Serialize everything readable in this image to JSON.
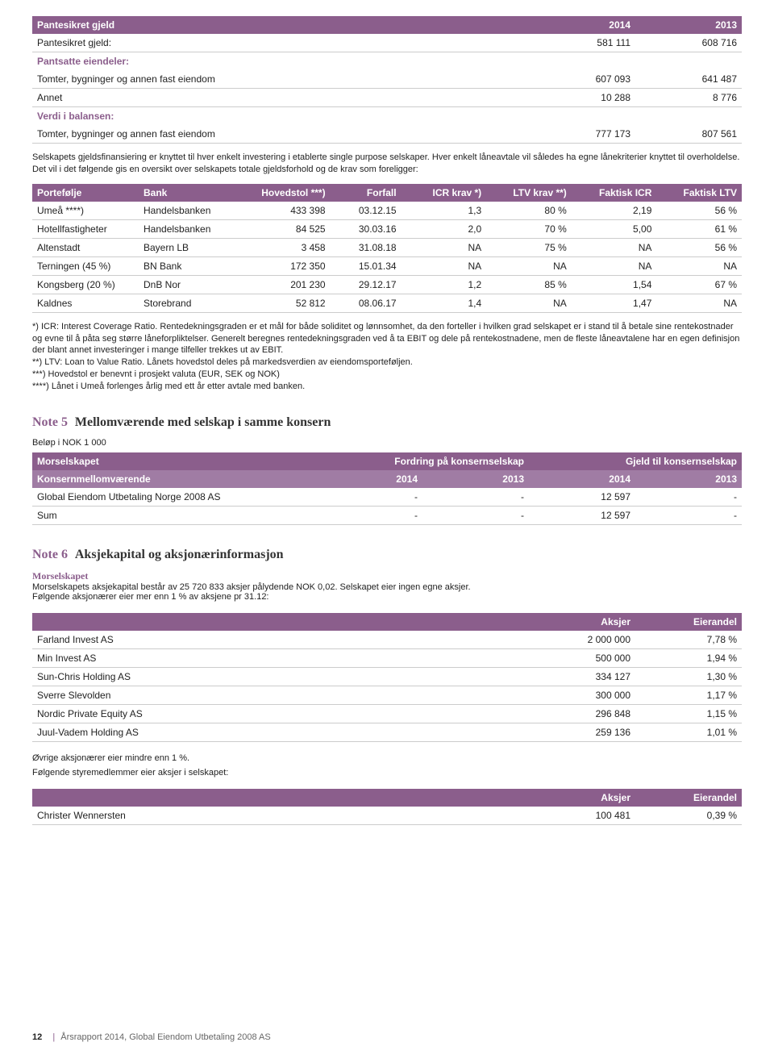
{
  "colors": {
    "header_bg": "#8b5e8c",
    "subhead_bg": "#a07ca4",
    "header_fg": "#ffffff",
    "row_border": "#cccccc",
    "accent_text": "#8b5e8c",
    "body_text": "#222222",
    "page_bg": "#ffffff"
  },
  "typography": {
    "base_pt": 12,
    "small_pt": 11,
    "heading_pt": 16,
    "heading_family": "Georgia, serif"
  },
  "table1": {
    "header": {
      "c0": "Pantesikret gjeld",
      "c1": "2014",
      "c2": "2013"
    },
    "rows": [
      {
        "label": "Pantesikret gjeld:",
        "v1": "581 111",
        "v2": "608 716",
        "cls": "data-row"
      },
      {
        "label": "Pantsatte eiendeler:",
        "v1": "",
        "v2": "",
        "cls": "sub-row bold-row"
      },
      {
        "label": "Tomter, bygninger og annen fast eiendom",
        "v1": "607 093",
        "v2": "641 487",
        "cls": "data-row"
      },
      {
        "label": "Annet",
        "v1": "10 288",
        "v2": "8 776",
        "cls": "data-row"
      },
      {
        "label": "Verdi i balansen:",
        "v1": "",
        "v2": "",
        "cls": "sub-row bold-row"
      },
      {
        "label": "Tomter, bygninger og annen fast eiendom",
        "v1": "777 173",
        "v2": "807 561",
        "cls": "data-row"
      }
    ],
    "col_widths": [
      "70%",
      "15%",
      "15%"
    ]
  },
  "para1": "Selskapets gjeldsfinansiering er knyttet til hver enkelt investering i etablerte single purpose selskaper. Hver enkelt låneavtale vil således ha egne lånekriterier knyttet til overholdelse. Det vil i det følgende gis en oversikt over selskapets totale gjeldsforhold og de krav som foreligger:",
  "table2": {
    "header": {
      "c0": "Portefølje",
      "c1": "Bank",
      "c2": "Hovedstol ***)",
      "c3": "Forfall",
      "c4": "ICR krav *)",
      "c5": "LTV krav **)",
      "c6": "Faktisk ICR",
      "c7": "Faktisk LTV"
    },
    "rows": [
      {
        "c0": "Umeå ****)",
        "c1": "Handelsbanken",
        "c2": "433 398",
        "c3": "03.12.15",
        "c4": "1,3",
        "c5": "80 %",
        "c6": "2,19",
        "c7": "56 %"
      },
      {
        "c0": "Hotellfastigheter",
        "c1": "Handelsbanken",
        "c2": "84 525",
        "c3": "30.03.16",
        "c4": "2,0",
        "c5": "70 %",
        "c6": "5,00",
        "c7": "61 %"
      },
      {
        "c0": "Altenstadt",
        "c1": "Bayern LB",
        "c2": "3 458",
        "c3": "31.08.18",
        "c4": "NA",
        "c5": "75 %",
        "c6": "NA",
        "c7": "56 %"
      },
      {
        "c0": "Terningen (45 %)",
        "c1": "BN Bank",
        "c2": "172 350",
        "c3": "15.01.34",
        "c4": "NA",
        "c5": "NA",
        "c6": "NA",
        "c7": "NA"
      },
      {
        "c0": "Kongsberg (20 %)",
        "c1": "DnB Nor",
        "c2": "201 230",
        "c3": "29.12.17",
        "c4": "1,2",
        "c5": "85 %",
        "c6": "1,54",
        "c7": "67 %"
      },
      {
        "c0": "Kaldnes",
        "c1": "Storebrand",
        "c2": "52 812",
        "c3": "08.06.17",
        "c4": "1,4",
        "c5": "NA",
        "c6": "1,47",
        "c7": "NA"
      }
    ],
    "col_widths": [
      "15%",
      "15%",
      "12%",
      "10%",
      "12%",
      "12%",
      "12%",
      "12%"
    ]
  },
  "footnotes": "*) ICR: Interest Coverage Ratio. Rentedekningsgraden er et mål for både soliditet og lønnsomhet, da den forteller i hvilken grad selskapet er i stand til å betale sine rentekostnader og evne til å påta seg større låneforpliktelser. Generelt beregnes rentedekningsgraden ved å ta EBIT og dele på rentekostnadene, men de fleste låneavtalene har en egen definisjon der blant annet investeringer i mange tilfeller trekkes ut av EBIT.\n**) LTV: Loan to Value Ratio. Lånets hovedstol deles på markedsverdien av eiendomsporteføljen.\n***) Hovedstol er benevnt i prosjekt valuta (EUR, SEK og NOK)\n****) Lånet i Umeå forlenges årlig med ett år etter avtale med banken.",
  "note5": {
    "num": "Note 5",
    "title": "Mellomværende med selskap i samme konsern",
    "sub": "Beløp i NOK 1 000",
    "header_r1": {
      "c0": "Morselskapet",
      "c1": "Fordring på konsernselskap",
      "c2": "Gjeld til konsernselskap"
    },
    "header_r2": {
      "c0": "Konsernmellomværende",
      "c1": "2014",
      "c2": "2013",
      "c3": "2014",
      "c4": "2013"
    },
    "rows": [
      {
        "c0": "Global Eiendom Utbetaling Norge 2008 AS",
        "c1": "-",
        "c2": "-",
        "c3": "12 597",
        "c4": "-"
      },
      {
        "c0": "Sum",
        "c1": "-",
        "c2": "-",
        "c3": "12 597",
        "c4": "-"
      }
    ],
    "col_widths": [
      "40%",
      "15%",
      "15%",
      "15%",
      "15%"
    ]
  },
  "note6": {
    "num": "Note 6",
    "title": "Aksjekapital og aksjonærinformasjon",
    "sub1": "Morselskapet",
    "para": "Morselskapets aksjekapital består av 25 720 833 aksjer pålydende NOK 0,02. Selskapet eier ingen egne aksjer.\nFølgende aksjonærer eier mer enn 1 % av aksjene pr 31.12:",
    "header": {
      "c0": "",
      "c1": "Aksjer",
      "c2": "Eierandel"
    },
    "rows": [
      {
        "c0": "Farland Invest AS",
        "c1": "2 000 000",
        "c2": "7,78 %"
      },
      {
        "c0": "Min Invest AS",
        "c1": "500 000",
        "c2": "1,94 %"
      },
      {
        "c0": "Sun-Chris Holding AS",
        "c1": "334 127",
        "c2": "1,30 %"
      },
      {
        "c0": "Sverre Slevolden",
        "c1": "300 000",
        "c2": "1,17 %"
      },
      {
        "c0": "Nordic Private Equity AS",
        "c1": "296 848",
        "c2": "1,15 %"
      },
      {
        "c0": "Juul-Vadem Holding AS",
        "c1": "259 136",
        "c2": "1,01 %"
      }
    ],
    "col_widths": [
      "70%",
      "15%",
      "15%"
    ],
    "post_text": "Øvrige aksjonærer eier mindre enn 1 %.",
    "post_text2": "Følgende styremedlemmer eier aksjer i selskapet:",
    "header2": {
      "c0": "",
      "c1": "Aksjer",
      "c2": "Eierandel"
    },
    "rows2": [
      {
        "c0": "Christer Wennersten",
        "c1": "100 481",
        "c2": "0,39 %"
      }
    ]
  },
  "footer": {
    "page": "12",
    "text": "Årsrapport 2014, Global Eiendom Utbetaling 2008 AS"
  }
}
